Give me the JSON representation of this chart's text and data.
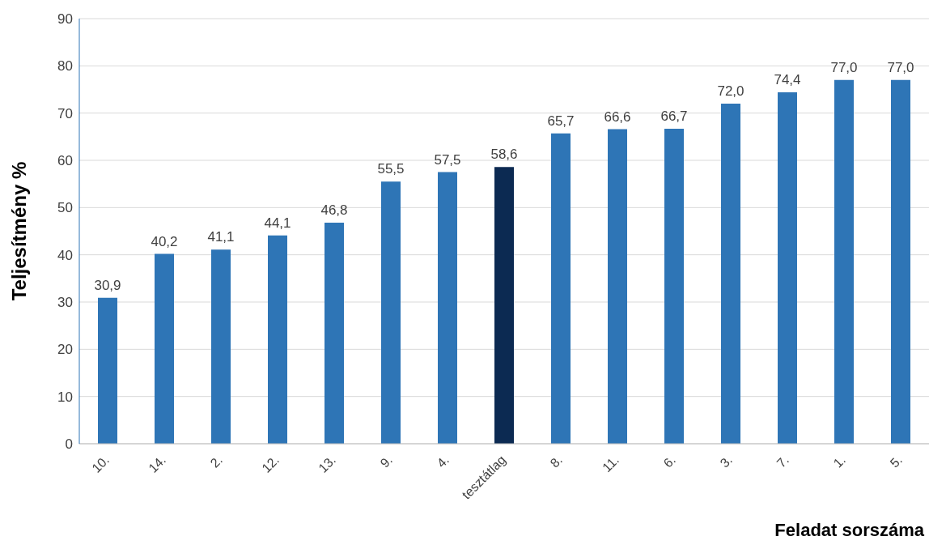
{
  "chart_data": {
    "type": "bar",
    "xlabel": "Feladat sorszáma",
    "ylabel": "Teljesítmény %",
    "categories": [
      "10.",
      "14.",
      "2.",
      "12.",
      "13.",
      "9.",
      "4.",
      "tesztátlag",
      "8.",
      "11.",
      "6.",
      "3.",
      "7.",
      "1.",
      "5."
    ],
    "values": [
      30.9,
      40.2,
      41.1,
      44.1,
      46.8,
      55.5,
      57.5,
      58.6,
      65.7,
      66.6,
      66.7,
      72.0,
      74.4,
      77.0,
      77.0
    ],
    "value_labels": [
      "30,9",
      "40,2",
      "41,1",
      "44,1",
      "46,8",
      "55,5",
      "57,5",
      "58,6",
      "65,7",
      "66,6",
      "66,7",
      "72,0",
      "74,4",
      "77,0",
      "77,0"
    ],
    "colors": [
      "#2e75b6",
      "#2e75b6",
      "#2e75b6",
      "#2e75b6",
      "#2e75b6",
      "#2e75b6",
      "#2e75b6",
      "#0c2a52",
      "#2e75b6",
      "#2e75b6",
      "#2e75b6",
      "#2e75b6",
      "#2e75b6",
      "#2e75b6",
      "#2e75b6"
    ],
    "ylim": [
      0,
      90
    ],
    "yticks": [
      0,
      10,
      20,
      30,
      40,
      50,
      60,
      70,
      80,
      90
    ],
    "grid": "y"
  }
}
